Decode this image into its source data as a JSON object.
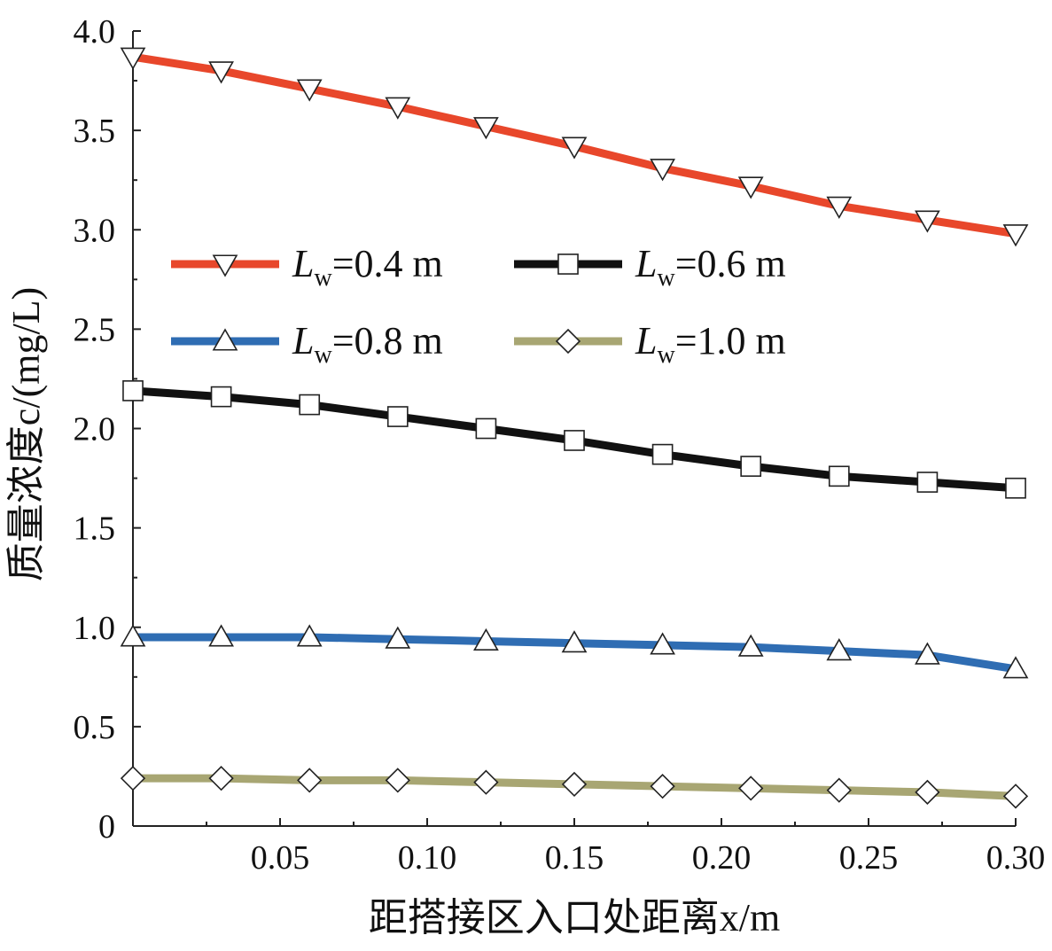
{
  "chart_data": {
    "type": "line",
    "xlabel": "距搭接区入口处距离x/m",
    "ylabel": "质量浓度c/(mg/L)",
    "xlim": [
      0,
      0.3
    ],
    "ylim": [
      0,
      4.0
    ],
    "x_ticks": [
      "0.05",
      "0.10",
      "0.15",
      "0.20",
      "0.25",
      "0.30"
    ],
    "y_ticks": [
      "0",
      "0.5",
      "1.0",
      "1.5",
      "2.0",
      "2.5",
      "3.0",
      "3.5",
      "4.0"
    ],
    "grid": false,
    "legend_position": "upper-center",
    "x": [
      0,
      0.03,
      0.06,
      0.09,
      0.12,
      0.15,
      0.18,
      0.21,
      0.24,
      0.27,
      0.3
    ],
    "series": [
      {
        "name": "L",
        "subscript": "w",
        "value_label": "=0.4 m",
        "color": "#e8472b",
        "marker": "triangle-down",
        "values": [
          3.87,
          3.8,
          3.71,
          3.62,
          3.52,
          3.42,
          3.31,
          3.22,
          3.12,
          3.05,
          2.98
        ]
      },
      {
        "name": "L",
        "subscript": "w",
        "value_label": "=0.6 m",
        "color": "#111111",
        "marker": "square",
        "values": [
          2.19,
          2.16,
          2.12,
          2.06,
          2.0,
          1.94,
          1.87,
          1.81,
          1.76,
          1.73,
          1.7
        ]
      },
      {
        "name": "L",
        "subscript": "w",
        "value_label": "=0.8 m",
        "color": "#2f6db3",
        "marker": "triangle-up",
        "values": [
          0.95,
          0.95,
          0.95,
          0.94,
          0.93,
          0.92,
          0.91,
          0.9,
          0.88,
          0.86,
          0.79
        ]
      },
      {
        "name": "L",
        "subscript": "w",
        "value_label": "=1.0 m",
        "color": "#a8a673",
        "marker": "diamond",
        "values": [
          0.24,
          0.24,
          0.23,
          0.23,
          0.22,
          0.21,
          0.2,
          0.19,
          0.18,
          0.17,
          0.15
        ]
      }
    ]
  }
}
